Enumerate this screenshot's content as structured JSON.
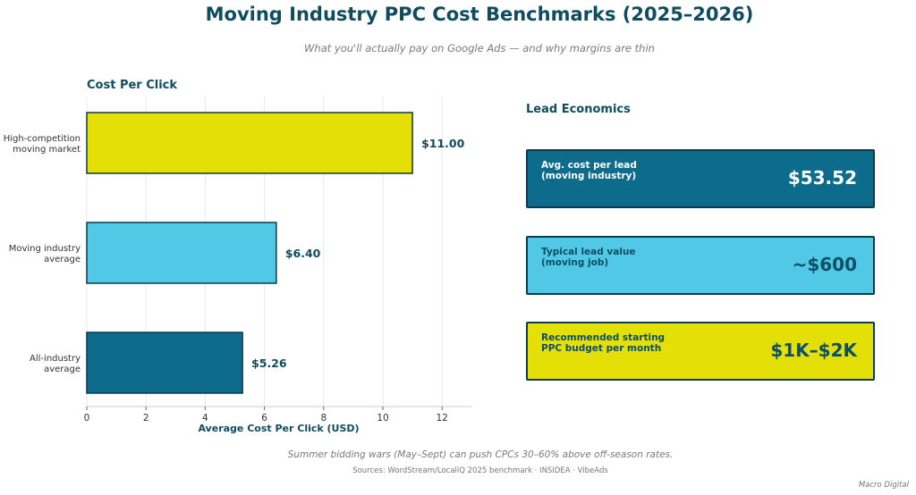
{
  "title": "Moving Industry PPC Cost Benchmarks (2025–2026)",
  "subtitle": "What you'll actually pay on Google Ads — and why margins are thin",
  "chart_data": {
    "type": "bar",
    "orientation": "horizontal",
    "title": "Cost Per Click",
    "xlabel": "Average Cost Per Click (USD)",
    "xlim": [
      0,
      13
    ],
    "xticks": [
      0,
      2,
      4,
      6,
      8,
      10,
      12
    ],
    "grid": true,
    "categories": [
      "High-competition\nmoving market",
      "Moving industry\naverage",
      "All-industry\naverage"
    ],
    "values": [
      11.0,
      6.4,
      5.26
    ],
    "value_labels": [
      "$11.00",
      "$6.40",
      "$5.26"
    ],
    "colors": [
      "#e3df07",
      "#50c8e6",
      "#0d6b8c"
    ]
  },
  "lead_economics": {
    "title": "Lead Economics",
    "cards": [
      {
        "label": "Avg. cost per lead\n(moving industry)",
        "value": "$53.52",
        "bg": "#0d6b8c",
        "fg": "#ffffff"
      },
      {
        "label": "Typical lead value\n(moving job)",
        "value": "~$600",
        "bg": "#50c8e6",
        "fg": "#0d4f63"
      },
      {
        "label": "Recommended starting\nPPC budget per month",
        "value": "$1K–$2K",
        "bg": "#e3df07",
        "fg": "#0d4f63"
      }
    ]
  },
  "footnote": "Summer bidding wars (May–Sept) can push CPCs 30–60% above off-season rates.",
  "sources": "Sources: WordStream/LocaliQ 2025 benchmark · INSIDEA · VibeAds",
  "brand": "Macro Digital"
}
